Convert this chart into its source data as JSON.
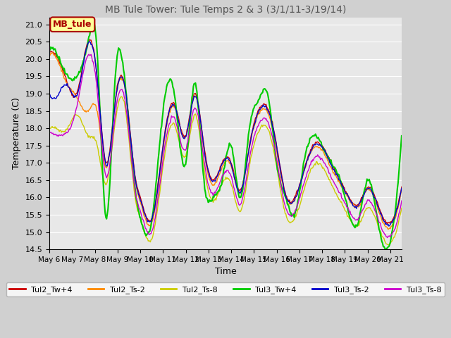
{
  "title": "MB Tule Tower: Tule Temps 2 & 3 (3/1/11-3/19/14)",
  "xlabel": "Time",
  "ylabel": "Temperature (C)",
  "ylim": [
    14.5,
    21.2
  ],
  "xlim": [
    0,
    15.5
  ],
  "xtick_labels": [
    "May 6",
    "May 7",
    "May 8",
    "May 9",
    "May 10",
    "May 11",
    "May 12",
    "May 13",
    "May 14",
    "May 15",
    "May 16",
    "May 17",
    "May 18",
    "May 19",
    "May 20",
    "May 21"
  ],
  "ytick_values": [
    14.5,
    15.0,
    15.5,
    16.0,
    16.5,
    17.0,
    17.5,
    18.0,
    18.5,
    19.0,
    19.5,
    20.0,
    20.5,
    21.0
  ],
  "legend_label": "MB_tule",
  "legend_bg": "#ffff99",
  "legend_border": "#aa0000",
  "plot_bg": "#e8e8e8",
  "grid_color": "#ffffff",
  "title_color": "#555555",
  "series": [
    {
      "label": "Tul2_Tw+4",
      "color": "#cc0000",
      "linewidth": 1.0
    },
    {
      "label": "Tul2_Ts-2",
      "color": "#ff8800",
      "linewidth": 1.0
    },
    {
      "label": "Tul2_Ts-8",
      "color": "#cccc00",
      "linewidth": 1.0
    },
    {
      "label": "Tul3_Tw+4",
      "color": "#00cc00",
      "linewidth": 1.5
    },
    {
      "label": "Tul3_Ts-2",
      "color": "#0000cc",
      "linewidth": 1.0
    },
    {
      "label": "Tul3_Ts-8",
      "color": "#cc00cc",
      "linewidth": 1.0
    }
  ]
}
